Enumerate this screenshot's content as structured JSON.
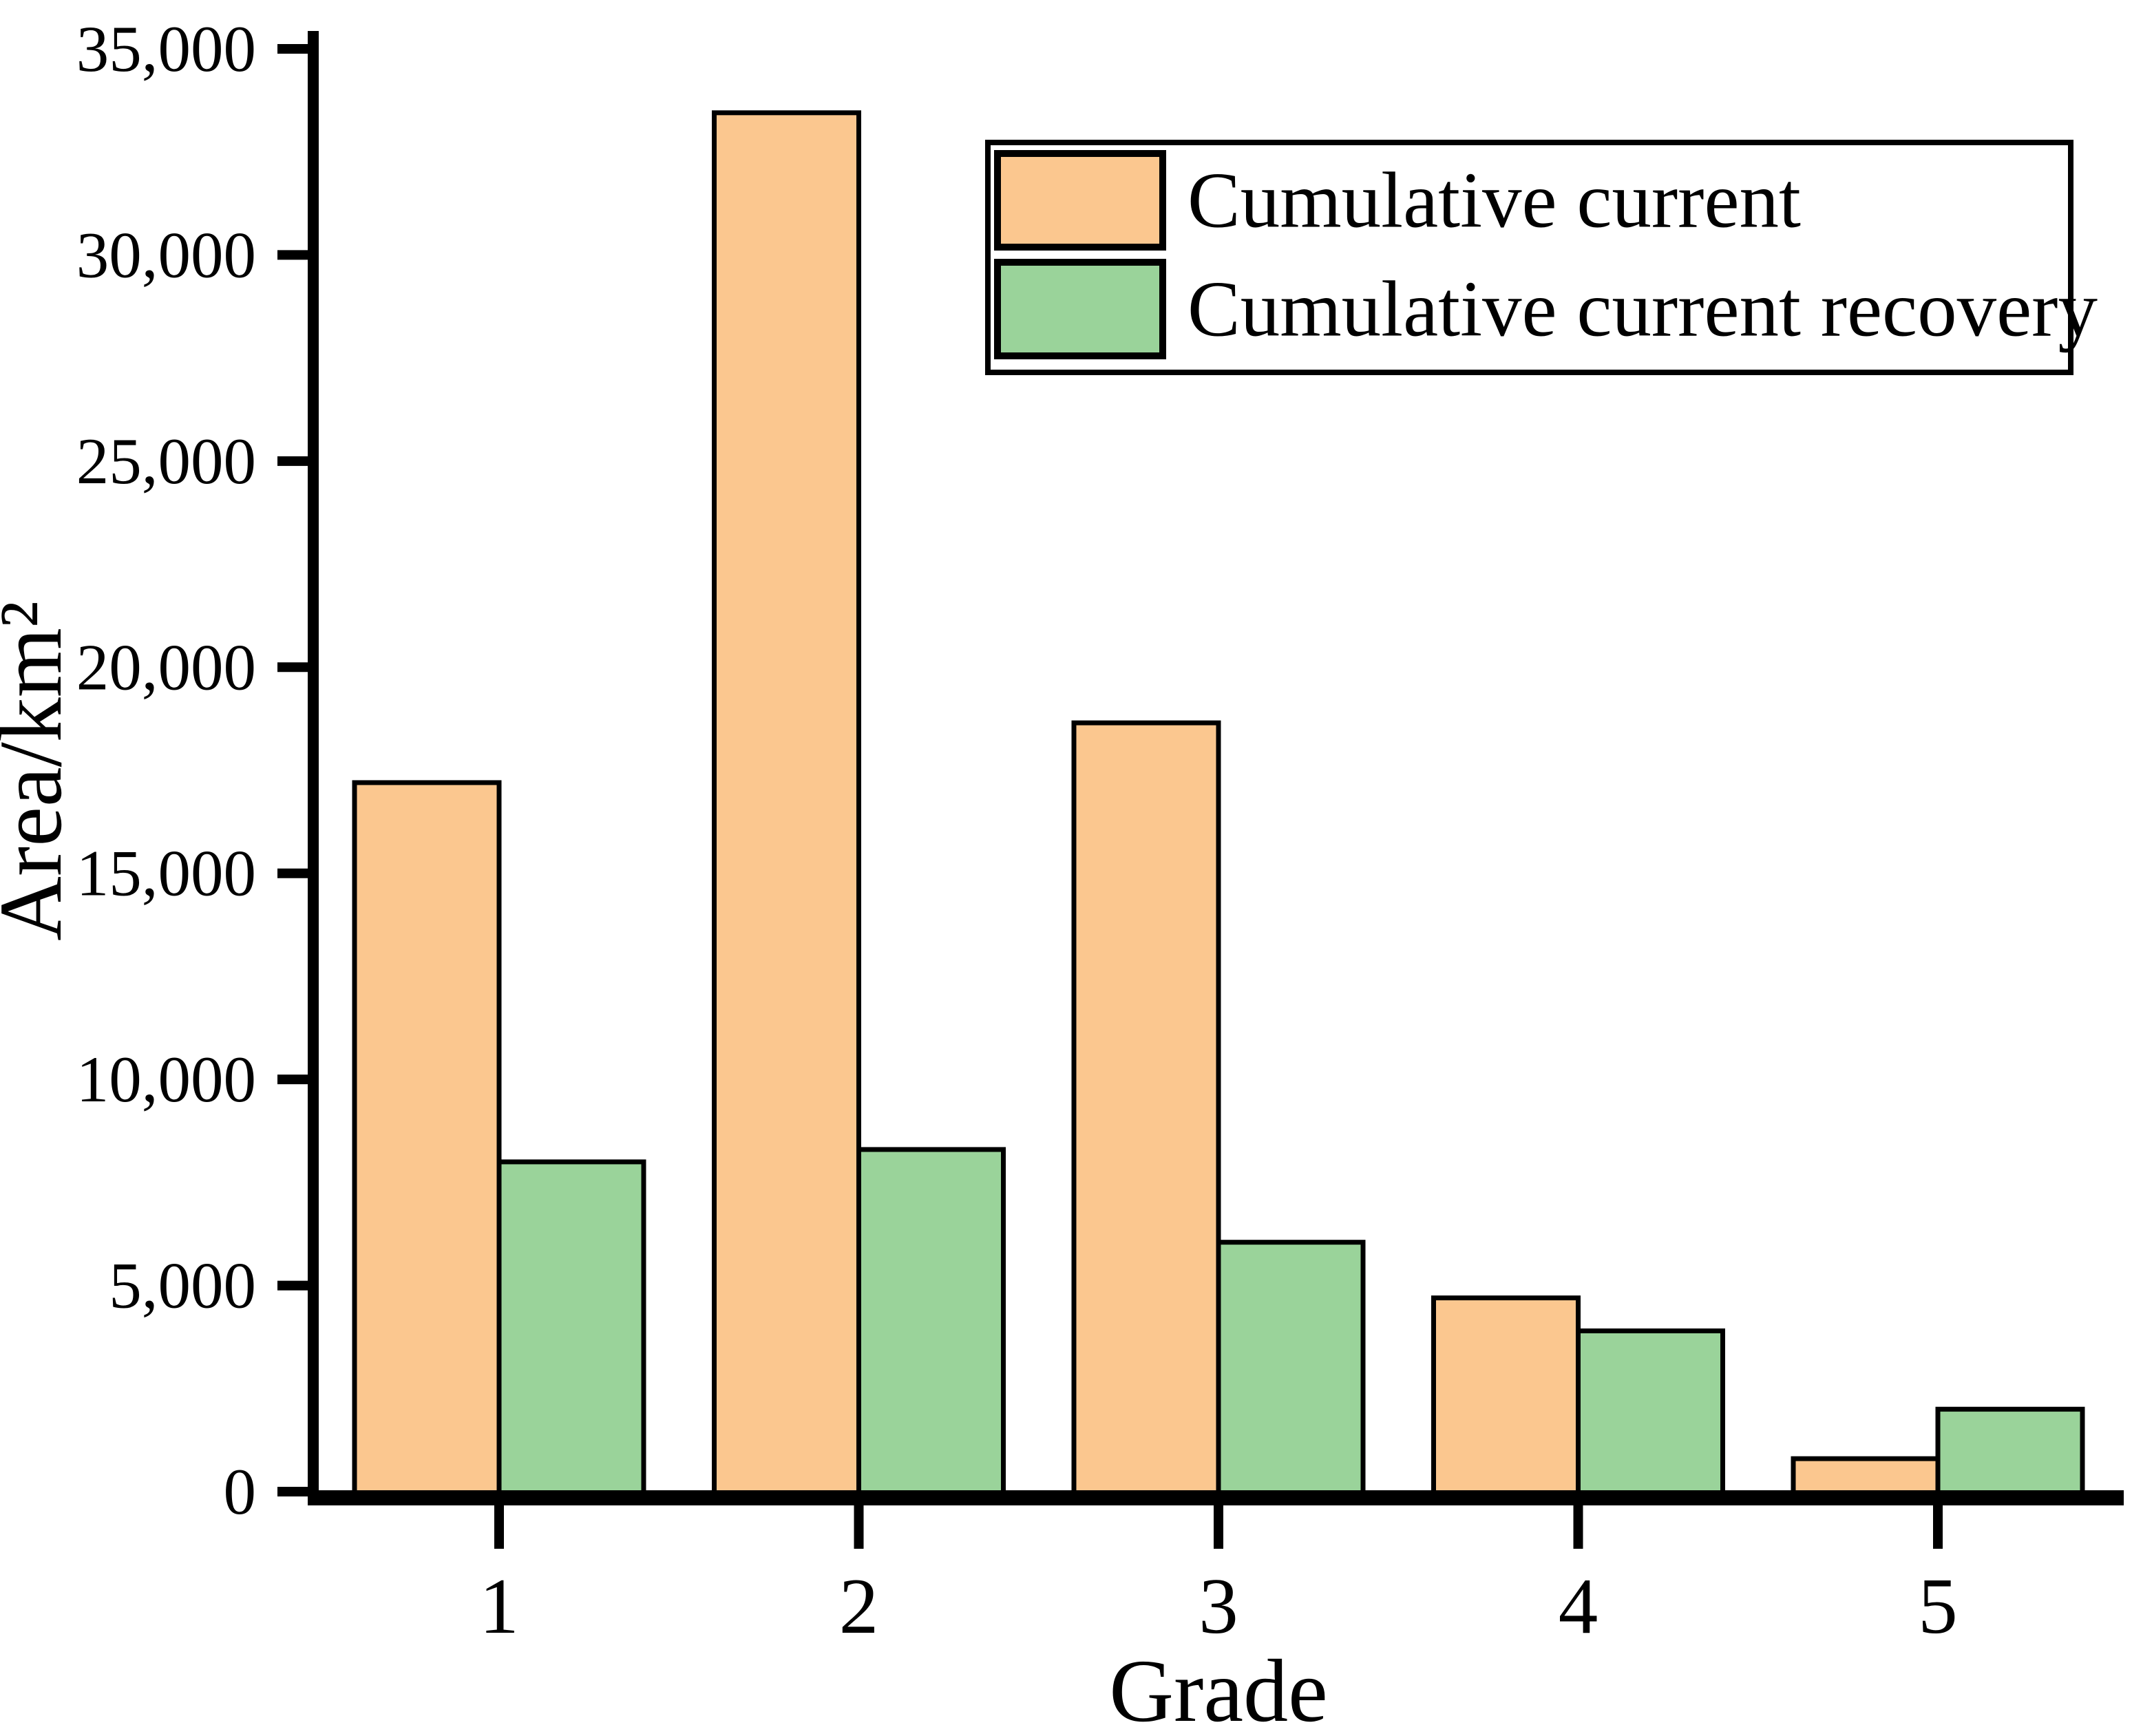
{
  "chart_data": {
    "type": "bar",
    "title": "",
    "categories": [
      "1",
      "2",
      "3",
      "4",
      "5"
    ],
    "series": [
      {
        "name": "Cumulative current",
        "color": "#FBC78F",
        "values": [
          17200,
          33450,
          18650,
          4700,
          800
        ]
      },
      {
        "name": "Cumulative current recovery",
        "color": "#9AD39A",
        "values": [
          8000,
          8300,
          6050,
          3900,
          2000
        ]
      }
    ],
    "xlabel": "Grade",
    "ylabel": "Area/km²",
    "ylim": [
      0,
      35000
    ],
    "ytick_step": 5000,
    "ytick_labels": [
      "0",
      "5,000",
      "10,000",
      "15,000",
      "20,000",
      "25,000",
      "30,000",
      "35,000"
    ],
    "grid": false,
    "legend_position": "top-right",
    "bar_border_color": "#000000",
    "axis_color": "#000000",
    "background_color": "#ffffff"
  }
}
